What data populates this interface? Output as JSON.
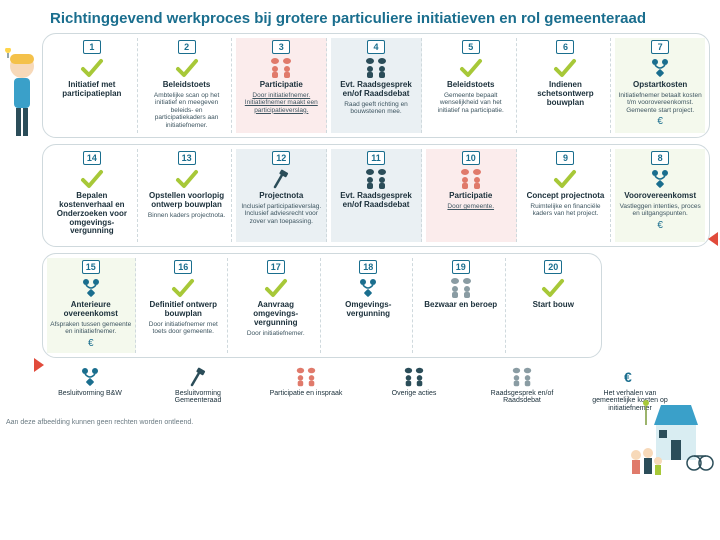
{
  "title": "Richtinggevend werkproces bij grotere particuliere initiatieven en rol gemeenteraad",
  "footnote": "Aan deze afbeelding kunnen geen rechten worden ontleend.",
  "colors": {
    "accent": "#1a6e8e",
    "check": "#a7c838",
    "participation": "#e07a6b",
    "dark": "#2b4d59",
    "red": "#e14b3b"
  },
  "rows": [
    [
      {
        "n": "1",
        "icon": "check",
        "title": "Initiatief met participatieplan",
        "sub": "",
        "bg": ""
      },
      {
        "n": "2",
        "icon": "check",
        "title": "Beleidstoets",
        "sub": "Ambtelijke scan op het initiatief en meegeven beleids- en participatiekaders aan initiatiefnemer.",
        "bg": ""
      },
      {
        "n": "3",
        "icon": "participation",
        "title": "Participatie",
        "sub": "Door initiatiefnemer. Initiatiefnemer maakt een participatieverslag.",
        "underline": true,
        "bg": "bg-pink"
      },
      {
        "n": "4",
        "icon": "raad",
        "title": "Evt. Raadsgesprek en/of Raadsdebat",
        "sub": "Raad geeft richting en bouwstenen mee.",
        "bg": "bg-blue"
      },
      {
        "n": "5",
        "icon": "check",
        "title": "Beleidstoets",
        "sub": "Gemeente bepaalt wenselijkheid van het initiatief na participatie.",
        "bg": ""
      },
      {
        "n": "6",
        "icon": "check",
        "title": "Indienen schetsontwerp bouwplan",
        "sub": "",
        "bg": ""
      },
      {
        "n": "7",
        "icon": "besluit",
        "title": "Opstartkosten",
        "sub": "Initiatiefnemer betaalt kosten t/m voorovereenkomst. Gemeente start project.",
        "euro": true,
        "bg": "bg-green"
      }
    ],
    [
      {
        "n": "14",
        "icon": "check",
        "title": "Bepalen kostenverhaal en Onderzoeken voor omgevings-vergunning",
        "sub": "",
        "bg": ""
      },
      {
        "n": "13",
        "icon": "check",
        "title": "Opstellen voorlopig ontwerp bouwplan",
        "sub": "Binnen kaders projectnota.",
        "bg": ""
      },
      {
        "n": "12",
        "icon": "hammer",
        "title": "Projectnota",
        "sub": "Inclusief participatieverslag. Inclusief adviesrecht voor zover van toepassing.",
        "bg": "bg-blue"
      },
      {
        "n": "11",
        "icon": "raad",
        "title": "Evt. Raadsgesprek en/of Raadsdebat",
        "sub": "",
        "bg": "bg-blue"
      },
      {
        "n": "10",
        "icon": "participation",
        "title": "Participatie",
        "sub": "Door gemeente.",
        "underline": true,
        "bg": "bg-pink"
      },
      {
        "n": "9",
        "icon": "check",
        "title": "Concept projectnota",
        "sub": "Ruimtelijke en financiële kaders van het project.",
        "bg": ""
      },
      {
        "n": "8",
        "icon": "besluit",
        "title": "Voorovereenkomst",
        "sub": "Vastleggen intenties, proces en uitgangspunten.",
        "euro": true,
        "bg": "bg-green"
      }
    ],
    [
      {
        "n": "15",
        "icon": "besluit",
        "title": "Anterieure overeenkomst",
        "sub": "Afspraken tussen gemeente en initiatiefnemer.",
        "euro": true,
        "bg": "bg-green"
      },
      {
        "n": "16",
        "icon": "check",
        "title": "Definitief ontwerp bouwplan",
        "sub": "Door initiatiefnemer met toets door gemeente.",
        "bg": ""
      },
      {
        "n": "17",
        "icon": "check",
        "title": "Aanvraag omgevings-vergunning",
        "sub": "Door initiatiefnemer.",
        "bg": ""
      },
      {
        "n": "18",
        "icon": "besluit",
        "title": "Omgevings-vergunning",
        "sub": "",
        "bg": ""
      },
      {
        "n": "19",
        "icon": "raad-light",
        "title": "Bezwaar en beroep",
        "sub": "",
        "bg": ""
      },
      {
        "n": "20",
        "icon": "check",
        "title": "Start bouw",
        "sub": "",
        "bg": ""
      }
    ]
  ],
  "legend": [
    {
      "icon": "besluit",
      "label": "Besluitvorming B&W"
    },
    {
      "icon": "hammer",
      "label": "Besluitvorming Gemeenteraad"
    },
    {
      "icon": "participation",
      "label": "Participatie en inspraak"
    },
    {
      "icon": "raad",
      "label": "Overige acties"
    },
    {
      "icon": "raad-light",
      "label": "Raadsgesprek en/of Raadsdebat"
    },
    {
      "icon": "euro",
      "label": "Het verhalen van gemeentelijke kosten op initiatiefnemer"
    }
  ]
}
